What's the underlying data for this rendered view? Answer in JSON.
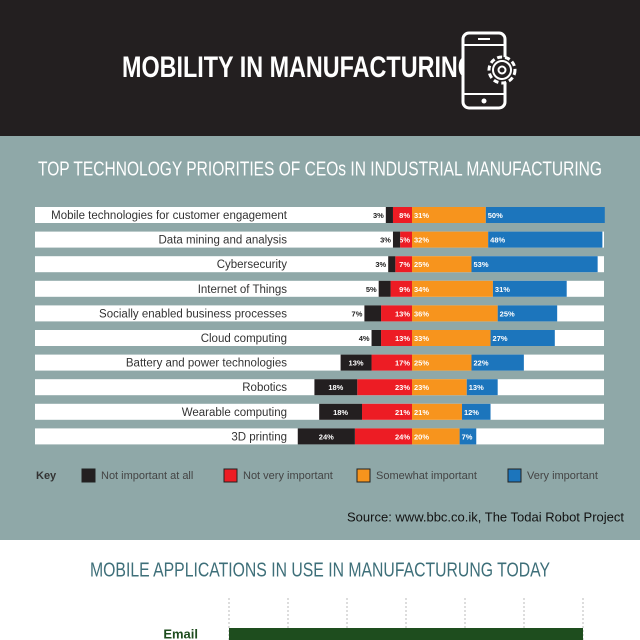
{
  "header": {
    "title": "MOBILITY IN MANUFACTURING"
  },
  "chart_data": [
    {
      "type": "bar",
      "title": "TOP TECHNOLOGY PRIORITIES OF CEOs IN INDUSTRIAL MANUFACTURING",
      "orientation": "horizontal",
      "stacking": "diverging",
      "categories": [
        "Mobile technologies for customer engagement",
        "Data mining and analysis",
        "Cybersecurity",
        "Internet of Things",
        "Socially enabled business processes",
        "Cloud computing",
        "Battery and power technologies",
        "Robotics",
        "Wearable computing",
        "3D printing"
      ],
      "series": [
        {
          "name": "Not important at all",
          "color": "#231f20",
          "side": "left",
          "values": [
            3,
            3,
            3,
            5,
            7,
            4,
            13,
            18,
            18,
            24
          ],
          "value_labels": [
            "3%",
            "3%",
            "3%",
            "5%",
            "7%",
            "4%",
            "13%",
            "18%",
            "18%",
            "24%"
          ]
        },
        {
          "name": "Not very important",
          "color": "#ed1c24",
          "side": "left",
          "values": [
            8,
            5,
            7,
            9,
            13,
            13,
            17,
            23,
            21,
            24
          ],
          "value_labels": [
            "8%",
            "5%",
            "7%",
            "9%",
            "13%",
            "13%",
            "17%",
            "23%",
            "21%",
            "24%"
          ]
        },
        {
          "name": "Somewhat important",
          "color": "#f7941d",
          "side": "right",
          "values": [
            31,
            32,
            25,
            34,
            36,
            33,
            25,
            23,
            21,
            20
          ],
          "value_labels": [
            "31%",
            "32%",
            "25%",
            "34%",
            "36%",
            "33%",
            "25%",
            "23%",
            "21%",
            "20%"
          ]
        },
        {
          "name": "Very important",
          "color": "#1c75bc",
          "side": "right",
          "values": [
            50,
            48,
            53,
            31,
            25,
            27,
            22,
            13,
            12,
            7
          ],
          "value_labels": [
            "50%",
            "48%",
            "53%",
            "31%",
            "25%",
            "27%",
            "22%",
            "13%",
            "12%",
            "7%"
          ]
        }
      ],
      "legend_title": "Key",
      "source": "Source: www.bbc.co.ik, The Todai Robot Project"
    },
    {
      "type": "bar",
      "title": "MOBILE APPLICATIONS IN USE IN MANUFACTURUNG TODAY",
      "orientation": "horizontal",
      "categories": [
        "Email"
      ],
      "color": "#1e4d1e"
    }
  ]
}
